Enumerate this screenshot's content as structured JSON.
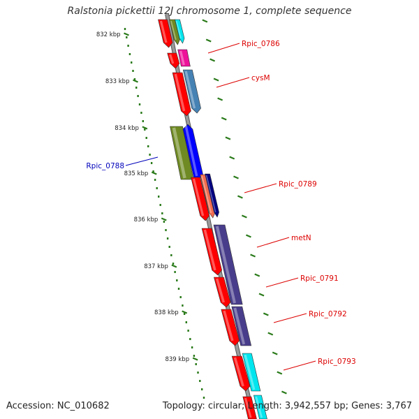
{
  "title": "Ralstonia pickettii 12J chromosome 1, complete sequence",
  "footer": {
    "accession": "Accession: NC_010682",
    "summary": "Topology: circular; Length: 3,942,557 bp; Genes: 3,767"
  },
  "ticks": [
    "832 kbp",
    "833 kbp",
    "834 kbp",
    "835 kbp",
    "836 kbp",
    "837 kbp",
    "838 kbp",
    "839 kbp"
  ],
  "gene_labels": [
    "Rpic_0786",
    "cysM",
    "Rpic_0788",
    "Rpic_0789",
    "metN",
    "Rpic_0791",
    "Rpic_0792",
    "Rpic_0793"
  ],
  "colors": {
    "backbone": "#808080",
    "ruler": "#2a7a1a",
    "forward_label": "#dd0000",
    "reverse_label": "#0000bb",
    "gene_red": "#ff0000",
    "gene_olive": "#6f8a23",
    "gene_cyan": "#00e5ee",
    "gene_magenta": "#ee1199",
    "gene_steelblue": "#4682b4",
    "gene_blue": "#0000ff",
    "gene_salmon": "#f26c4f",
    "gene_navy": "#000080",
    "gene_slateblue": "#483d8b"
  }
}
